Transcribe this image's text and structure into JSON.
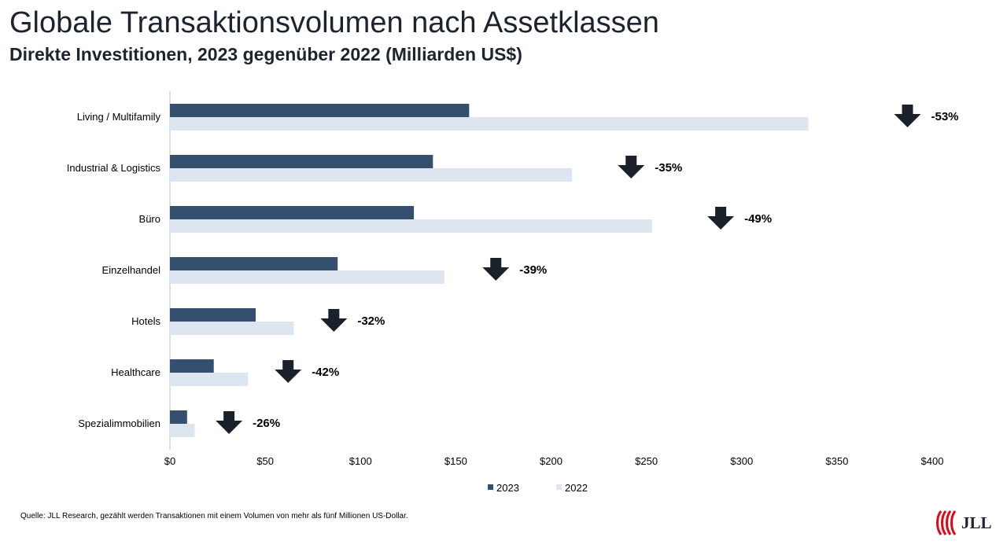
{
  "title": "Globale Transaktionsvolumen nach Assetklassen",
  "subtitle": "Direkte Investitionen, 2023 gegenüber 2022 (Milliarden US$)",
  "source": "Quelle: JLL Research, gezählt werden Transaktionen mit einem Volumen von mehr als fünf Millionen US-Dollar.",
  "logo": {
    "text": "JLL",
    "icon": "jll-logo-icon",
    "color": "#e30613"
  },
  "colors": {
    "s2023": "#34506e",
    "s2022": "#dde6f0",
    "arrow": "#1a212b",
    "axis": "#bfbfbf",
    "text": "#000000"
  },
  "chart_data": {
    "type": "bar",
    "orientation": "horizontal",
    "categories": [
      "Living / Multifamily",
      "Industrial & Logistics",
      "Büro",
      "Einzelhandel",
      "Hotels",
      "Healthcare",
      "Spezialimmobilien"
    ],
    "series": [
      {
        "name": "2023",
        "values": [
          157,
          138,
          128,
          88,
          45,
          23,
          9
        ]
      },
      {
        "name": "2022",
        "values": [
          335,
          211,
          253,
          144,
          65,
          41,
          13
        ]
      }
    ],
    "changes": [
      "-53%",
      "-35%",
      "-49%",
      "-39%",
      "-32%",
      "-42%",
      "-26%"
    ],
    "change_marker_x": [
      387,
      242,
      289,
      171,
      86,
      62,
      31
    ],
    "xlim": [
      0,
      400
    ],
    "xticks": [
      0,
      50,
      100,
      150,
      200,
      250,
      300,
      350,
      400
    ],
    "xtick_labels": [
      "$0",
      "$50",
      "$100",
      "$150",
      "$200",
      "$250",
      "$300",
      "$350",
      "$400"
    ],
    "legend_position": "bottom",
    "grid": false
  }
}
